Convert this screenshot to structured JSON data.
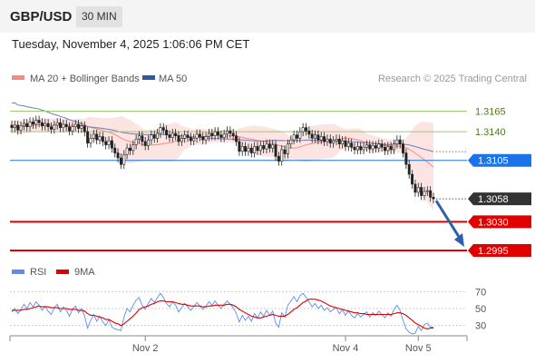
{
  "header": {
    "symbol": "GBP/USD",
    "interval": "30 MIN",
    "datetime": "Tuesday, November 4, 2025 1:06:06 PM CET"
  },
  "legend": {
    "items": [
      {
        "label": "MA 20 + Bollinger Bands",
        "color": "#f28b82"
      },
      {
        "label": "MA 50",
        "color": "#2c5a9e"
      }
    ],
    "credit": "Research © 2025 Trading Central"
  },
  "levels": [
    {
      "value": 1.3165,
      "label": "1.3165",
      "color": "#9acd70",
      "style": "resistance"
    },
    {
      "value": 1.314,
      "label": "1.3140",
      "color": "#9acd70",
      "style": "resistance"
    },
    {
      "value": 1.3105,
      "label": "1.3105",
      "color": "#1a73e8",
      "style": "pivot"
    },
    {
      "value": 1.303,
      "label": "1.3030",
      "color": "#e00000",
      "style": "support"
    },
    {
      "value": 1.2995,
      "label": "1.2995",
      "color": "#e00000",
      "style": "support"
    }
  ],
  "current_price": {
    "value": 1.3058,
    "label": "1.3058",
    "color": "#333333"
  },
  "rsi_legend": [
    {
      "label": "RSI",
      "color": "#5b8def"
    },
    {
      "label": "9MA",
      "color": "#e00000"
    }
  ],
  "rsi_ticks": [
    "70",
    "50",
    "30"
  ],
  "x_ticks": [
    "Nov 2",
    "Nov 4",
    "Nov 5"
  ],
  "chart_data": [
    {
      "type": "candlestick",
      "title": "",
      "ylim": [
        1.2985,
        1.319
      ],
      "x_tick_labels": [
        "Nov 2",
        "Nov 4",
        "Nov 5"
      ],
      "close": [
        1.3145,
        1.3148,
        1.3142,
        1.3147,
        1.315,
        1.3146,
        1.3152,
        1.3149,
        1.3154,
        1.3151,
        1.3147,
        1.315,
        1.3146,
        1.3143,
        1.3148,
        1.3151,
        1.3145,
        1.3149,
        1.3146,
        1.3141,
        1.3146,
        1.3149,
        1.3144,
        1.3147,
        1.314,
        1.3126,
        1.3132,
        1.3137,
        1.313,
        1.3134,
        1.3128,
        1.3124,
        1.3129,
        1.312,
        1.3114,
        1.3108,
        1.31,
        1.3112,
        1.312,
        1.3117,
        1.3124,
        1.3131,
        1.3135,
        1.3128,
        1.3123,
        1.313,
        1.3136,
        1.3132,
        1.3138,
        1.3145,
        1.3142,
        1.3136,
        1.3133,
        1.3138,
        1.3135,
        1.3128,
        1.3132,
        1.3136,
        1.3133,
        1.3129,
        1.3132,
        1.3137,
        1.3134,
        1.313,
        1.3134,
        1.3138,
        1.3135,
        1.314,
        1.3136,
        1.3133,
        1.3137,
        1.3141,
        1.3138,
        1.3135,
        1.3128,
        1.3116,
        1.3122,
        1.3116,
        1.312,
        1.3114,
        1.3122,
        1.3117,
        1.3123,
        1.3119,
        1.3125,
        1.312,
        1.3124,
        1.311,
        1.3104,
        1.3118,
        1.3113,
        1.3125,
        1.313,
        1.3136,
        1.3132,
        1.314,
        1.3145,
        1.3141,
        1.3137,
        1.3132,
        1.3136,
        1.313,
        1.3134,
        1.3128,
        1.3131,
        1.3126,
        1.3129,
        1.3131,
        1.3125,
        1.3129,
        1.3122,
        1.3126,
        1.3121,
        1.3118,
        1.3122,
        1.3118,
        1.3121,
        1.3124,
        1.3119,
        1.3123,
        1.312,
        1.3125,
        1.3121,
        1.3117,
        1.3122,
        1.3118,
        1.3125,
        1.313,
        1.3125,
        1.3114,
        1.31,
        1.3088,
        1.3076,
        1.3066,
        1.3072,
        1.3062,
        1.3067,
        1.3068,
        1.306,
        1.3058
      ]
    },
    {
      "type": "line",
      "title": "RSI",
      "ylim": [
        20,
        80
      ],
      "series": [
        {
          "name": "RSI",
          "values": [
            46,
            50,
            44,
            49,
            55,
            50,
            57,
            52,
            58,
            54,
            48,
            53,
            47,
            43,
            51,
            55,
            46,
            52,
            48,
            41,
            49,
            53,
            45,
            50,
            41,
            27,
            36,
            43,
            35,
            41,
            34,
            30,
            37,
            28,
            26,
            25,
            24,
            40,
            50,
            46,
            54,
            60,
            63,
            54,
            49,
            56,
            62,
            57,
            63,
            68,
            63,
            56,
            52,
            58,
            54,
            46,
            51,
            56,
            52,
            48,
            52,
            57,
            53,
            49,
            53,
            58,
            54,
            59,
            54,
            50,
            55,
            59,
            55,
            51,
            44,
            34,
            42,
            36,
            41,
            35,
            44,
            39,
            46,
            41,
            48,
            42,
            47,
            33,
            28,
            45,
            40,
            54,
            59,
            64,
            58,
            65,
            68,
            63,
            58,
            52,
            56,
            50,
            54,
            48,
            51,
            46,
            49,
            51,
            44,
            49,
            42,
            47,
            42,
            39,
            44,
            40,
            43,
            46,
            40,
            45,
            42,
            47,
            43,
            39,
            45,
            41,
            49,
            54,
            48,
            36,
            26,
            22,
            20,
            21,
            29,
            24,
            31,
            33,
            28,
            28
          ]
        },
        {
          "name": "9MA",
          "values": [
            48,
            48,
            48,
            48,
            49,
            49,
            50,
            51,
            52,
            53,
            52,
            52,
            52,
            51,
            51,
            51,
            50,
            50,
            50,
            49,
            49,
            49,
            48,
            48,
            47,
            44,
            42,
            42,
            41,
            40,
            39,
            37,
            37,
            35,
            33,
            32,
            30,
            32,
            35,
            38,
            41,
            45,
            49,
            51,
            52,
            53,
            55,
            56,
            58,
            59,
            59,
            58,
            58,
            58,
            57,
            56,
            55,
            55,
            54,
            53,
            53,
            53,
            53,
            52,
            52,
            53,
            53,
            54,
            54,
            54,
            54,
            55,
            55,
            54,
            52,
            49,
            47,
            45,
            43,
            41,
            40,
            39,
            39,
            40,
            41,
            42,
            43,
            42,
            41,
            41,
            41,
            43,
            46,
            49,
            51,
            54,
            57,
            59,
            61,
            61,
            61,
            60,
            59,
            57,
            55,
            53,
            52,
            51,
            50,
            49,
            48,
            47,
            46,
            45,
            45,
            44,
            44,
            43,
            43,
            43,
            43,
            43,
            43,
            43,
            43,
            43,
            44,
            45,
            45,
            44,
            42,
            39,
            36,
            33,
            31,
            29,
            27,
            26,
            27,
            27
          ]
        }
      ]
    }
  ]
}
